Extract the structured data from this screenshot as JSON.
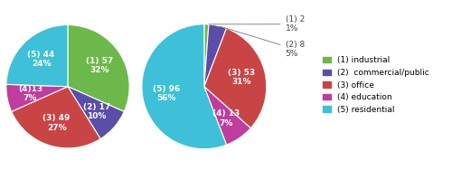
{
  "chart_data": [
    {
      "type": "pie",
      "categories": [
        "(1) industrial",
        "(2)  commercial/public",
        "(3) office",
        "(4) education",
        "(5) residential"
      ],
      "values": [
        57,
        17,
        49,
        13,
        44
      ],
      "value_labels": [
        "(1) 57\n32%",
        "(2) 17\n10%",
        "(3) 49\n27%",
        "(4)13\n7%",
        "(5) 44\n24%"
      ],
      "colors": [
        "#6db84a",
        "#5b4ea8",
        "#c94545",
        "#c03c9e",
        "#3dc0d8"
      ],
      "legend": "center left"
    },
    {
      "type": "pie",
      "categories": [
        "(1) industrial",
        "(2)  commercial/public",
        "(3) office",
        "(4) education",
        "(5) residential"
      ],
      "values": [
        2,
        8,
        53,
        13,
        96
      ],
      "value_labels": [
        "(1) 2\n1%",
        "(2) 8\n5%",
        "(3) 53\n31%",
        "(4) 13\n7%",
        "(5) 96\n56%"
      ],
      "colors": [
        "#6db84a",
        "#5b4ea8",
        "#c94545",
        "#c03c9e",
        "#3dc0d8"
      ]
    }
  ]
}
